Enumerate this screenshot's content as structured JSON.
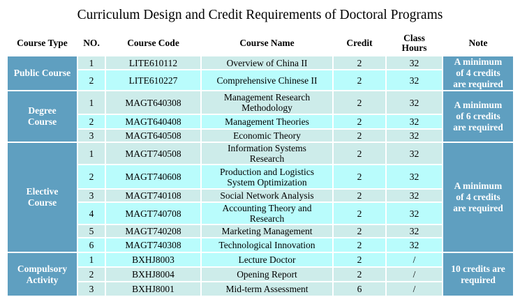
{
  "title": "Curriculum Design and Credit Requirements of Doctoral Programs",
  "headers": [
    "Course Type",
    "NO.",
    "Course Code",
    "Course Name",
    "Credit",
    "Class Hours",
    "Note"
  ],
  "groups": [
    {
      "type": "Public Course",
      "note": "A minimum of 4 credits are required",
      "rows": [
        {
          "no": "1",
          "code": "LITE610112",
          "name": "Overview of China II",
          "credit": "2",
          "hours": "32"
        },
        {
          "no": "2",
          "code": "LITE610227",
          "name": "Comprehensive Chinese II",
          "credit": "2",
          "hours": "32"
        }
      ]
    },
    {
      "type": "Degree Course",
      "note": "A minimum of 6 credits are required",
      "rows": [
        {
          "no": "1",
          "code": "MAGT640308",
          "name": "Management Research Methodology",
          "credit": "2",
          "hours": "32"
        },
        {
          "no": "2",
          "code": "MAGT640408",
          "name": "Management Theories",
          "credit": "2",
          "hours": "32"
        },
        {
          "no": "3",
          "code": "MAGT640508",
          "name": "Economic Theory",
          "credit": "2",
          "hours": "32"
        }
      ]
    },
    {
      "type": "Elective Course",
      "note": "A minimum of 4 credits are required",
      "rows": [
        {
          "no": "1",
          "code": "MAGT740508",
          "name": "Information Systems Research",
          "credit": "2",
          "hours": "32"
        },
        {
          "no": "2",
          "code": "MAGT740608",
          "name": "Production and Logistics System Optimization",
          "credit": "2",
          "hours": "32"
        },
        {
          "no": "3",
          "code": "MAGT740108",
          "name": "Social Network Analysis",
          "credit": "2",
          "hours": "32"
        },
        {
          "no": "4",
          "code": "MAGT740708",
          "name": "Accounting Theory and Research",
          "credit": "2",
          "hours": "32"
        },
        {
          "no": "5",
          "code": "MAGT740208",
          "name": "Marketing Management",
          "credit": "2",
          "hours": "32"
        },
        {
          "no": "6",
          "code": "MAGT740308",
          "name": "Technological Innovation",
          "credit": "2",
          "hours": "32"
        }
      ]
    },
    {
      "type": "Compulsory Activity",
      "note": "10 credits are required",
      "rows": [
        {
          "no": "1",
          "code": "BXHJ8003",
          "name": "Lecture Doctor",
          "credit": "2",
          "hours": "/"
        },
        {
          "no": "2",
          "code": "BXHJ8004",
          "name": "Opening Report",
          "credit": "2",
          "hours": "/"
        },
        {
          "no": "3",
          "code": "BXHJ8001",
          "name": "Mid-term Assessment",
          "credit": "6",
          "hours": "/"
        }
      ]
    }
  ],
  "colors": {
    "side": "#5f9fc0",
    "row_light": "#cdecea",
    "row_cyan": "#b9fcfc"
  }
}
